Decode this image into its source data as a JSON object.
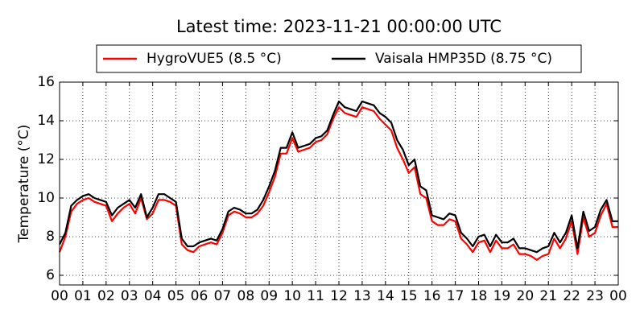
{
  "chart_data": {
    "type": "line",
    "title": "Latest time: 2023-11-21 00:00:00 UTC",
    "ylabel": "Temperature (°C)",
    "x": [
      0,
      0.25,
      0.5,
      0.75,
      1,
      1.25,
      1.5,
      1.75,
      2,
      2.25,
      2.5,
      2.75,
      3,
      3.25,
      3.5,
      3.75,
      4,
      4.25,
      4.5,
      4.75,
      5,
      5.25,
      5.5,
      5.75,
      6,
      6.25,
      6.5,
      6.75,
      7,
      7.25,
      7.5,
      7.75,
      8,
      8.25,
      8.5,
      8.75,
      9,
      9.25,
      9.5,
      9.75,
      10,
      10.25,
      10.5,
      10.75,
      11,
      11.25,
      11.5,
      11.75,
      12,
      12.25,
      12.5,
      12.75,
      13,
      13.25,
      13.5,
      13.75,
      14,
      14.25,
      14.5,
      14.75,
      15,
      15.25,
      15.5,
      15.75,
      16,
      16.25,
      16.5,
      16.75,
      17,
      17.25,
      17.5,
      17.75,
      18,
      18.25,
      18.5,
      18.75,
      19,
      19.25,
      19.5,
      19.75,
      20,
      20.25,
      20.5,
      20.75,
      21,
      21.25,
      21.5,
      21.75,
      22,
      22.25,
      22.5,
      22.75,
      23,
      23.25,
      23.5,
      23.75,
      24
    ],
    "series": [
      {
        "name": "HygroVUE5 (8.5 °C)",
        "color": "#ff0000",
        "values": [
          7.2,
          8.0,
          9.3,
          9.7,
          9.9,
          10.0,
          9.8,
          9.7,
          9.6,
          8.8,
          9.2,
          9.5,
          9.7,
          9.2,
          10.0,
          8.9,
          9.2,
          9.9,
          9.9,
          9.8,
          9.6,
          7.6,
          7.3,
          7.2,
          7.5,
          7.6,
          7.7,
          7.6,
          8.2,
          9.1,
          9.3,
          9.2,
          9.0,
          9.0,
          9.2,
          9.6,
          10.3,
          11.1,
          12.3,
          12.3,
          13.1,
          12.4,
          12.5,
          12.6,
          12.9,
          13.0,
          13.3,
          14.1,
          14.7,
          14.4,
          14.3,
          14.2,
          14.7,
          14.6,
          14.5,
          14.1,
          13.8,
          13.5,
          12.6,
          12.0,
          11.3,
          11.6,
          10.2,
          10.0,
          8.8,
          8.6,
          8.6,
          8.9,
          8.8,
          7.9,
          7.6,
          7.2,
          7.7,
          7.8,
          7.2,
          7.8,
          7.4,
          7.4,
          7.6,
          7.1,
          7.1,
          7.0,
          6.8,
          7.0,
          7.1,
          7.9,
          7.4,
          7.9,
          8.8,
          7.1,
          9.0,
          8.0,
          8.2,
          9.1,
          9.7,
          8.5,
          8.5
        ]
      },
      {
        "name": "Vaisala HMP35D (8.75 °C)",
        "color": "#000000",
        "values": [
          7.6,
          8.2,
          9.6,
          9.9,
          10.1,
          10.2,
          10.0,
          9.9,
          9.8,
          9.1,
          9.5,
          9.7,
          9.9,
          9.5,
          10.2,
          9.0,
          9.5,
          10.2,
          10.2,
          10.0,
          9.8,
          7.9,
          7.5,
          7.5,
          7.7,
          7.8,
          7.9,
          7.8,
          8.4,
          9.3,
          9.5,
          9.4,
          9.2,
          9.2,
          9.4,
          9.9,
          10.6,
          11.4,
          12.6,
          12.6,
          13.4,
          12.6,
          12.7,
          12.8,
          13.1,
          13.2,
          13.5,
          14.3,
          15.0,
          14.7,
          14.6,
          14.5,
          15.0,
          14.9,
          14.8,
          14.4,
          14.2,
          13.9,
          13.0,
          12.5,
          11.7,
          12.0,
          10.6,
          10.4,
          9.1,
          9.0,
          8.9,
          9.2,
          9.1,
          8.2,
          7.9,
          7.5,
          8.0,
          8.1,
          7.5,
          8.1,
          7.7,
          7.7,
          7.9,
          7.4,
          7.4,
          7.3,
          7.2,
          7.4,
          7.5,
          8.2,
          7.7,
          8.2,
          9.1,
          7.4,
          9.3,
          8.3,
          8.5,
          9.4,
          9.9,
          8.8,
          8.8
        ]
      }
    ],
    "xlim": [
      0,
      24
    ],
    "xticks": [
      {
        "value": 0,
        "label": "00"
      },
      {
        "value": 1,
        "label": "01"
      },
      {
        "value": 2,
        "label": "02"
      },
      {
        "value": 3,
        "label": "03"
      },
      {
        "value": 4,
        "label": "04"
      },
      {
        "value": 5,
        "label": "05"
      },
      {
        "value": 6,
        "label": "06"
      },
      {
        "value": 7,
        "label": "07"
      },
      {
        "value": 8,
        "label": "08"
      },
      {
        "value": 9,
        "label": "09"
      },
      10,
      11,
      12,
      13,
      14,
      15,
      16,
      17,
      18,
      19,
      20,
      21,
      22,
      23,
      {
        "value": 24,
        "label": "00"
      }
    ],
    "ylim": [
      5.5,
      16
    ],
    "yticks": [
      6,
      8,
      10,
      12,
      14,
      16
    ],
    "grid": true
  }
}
